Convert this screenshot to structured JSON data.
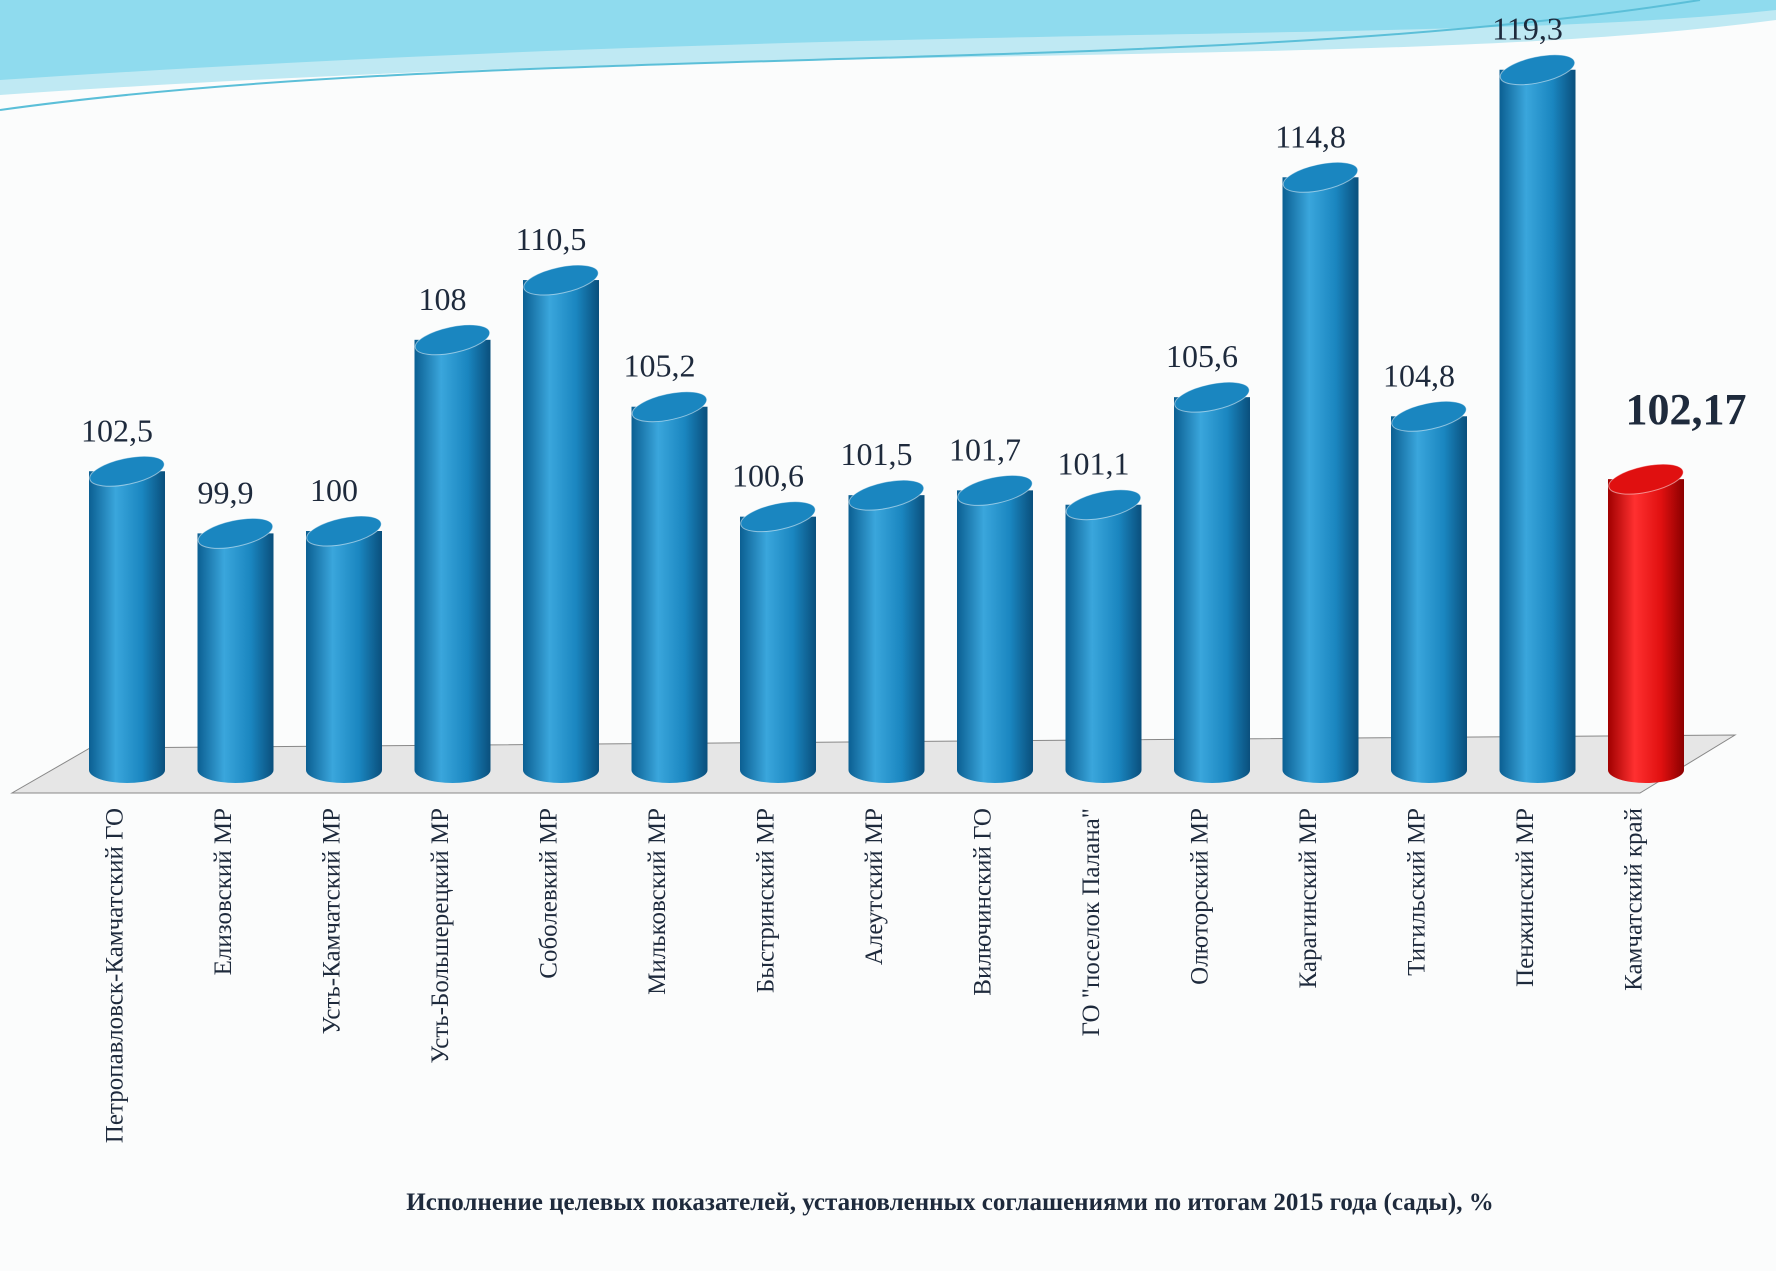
{
  "chart_data": {
    "type": "bar",
    "title": "Исполнение целевых показателей, установленных соглашениями по итогам 2015 года (сады), %",
    "categories": [
      "Петропавловск-Камчатский ГО",
      "Елизовский МР",
      "Усть-Камчатский МР",
      "Усть-Большерецкий  МР",
      "Соболевкий МР",
      "Мильковский МР",
      "Быстринский МР",
      "Алеутский МР",
      "Вилючинский ГО",
      "ГО \"поселок Палана\"",
      "Олюторский МР",
      "Карагинский МР",
      "Тигильский МР",
      "Пенжинский МР",
      "Камчатский край"
    ],
    "values": [
      102.5,
      99.9,
      100,
      108,
      110.5,
      105.2,
      100.6,
      101.5,
      101.7,
      101.1,
      105.6,
      114.8,
      104.8,
      119.3,
      102.17
    ],
    "value_labels": [
      "102,5",
      "99,9",
      "100",
      "108",
      "110,5",
      "105,2",
      "100,6",
      "101,5",
      "101,7",
      "101,1",
      "105,6",
      "114,8",
      "104,8",
      "119,3",
      "102,17"
    ],
    "colors": [
      "#1a86c0",
      "#1a86c0",
      "#1a86c0",
      "#1a86c0",
      "#1a86c0",
      "#1a86c0",
      "#1a86c0",
      "#1a86c0",
      "#1a86c0",
      "#1a86c0",
      "#1a86c0",
      "#1a86c0",
      "#1a86c0",
      "#1a86c0",
      "#e01010"
    ],
    "ylim": [
      90,
      120
    ]
  }
}
